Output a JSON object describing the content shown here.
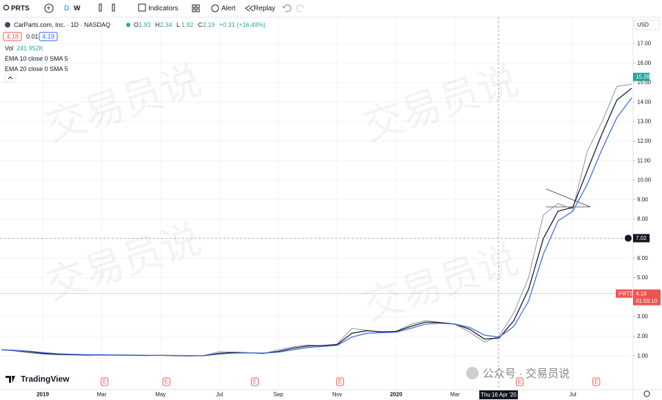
{
  "toolbar": {
    "symbol": "PRTS",
    "intervals": [
      "D",
      "W"
    ],
    "indicators": "Indicators",
    "alert": "Alert",
    "replay": "Replay"
  },
  "legend": {
    "title": "CarParts.com, Inc. · 1D · NASDAQ",
    "ohlc": [
      {
        "label": "O",
        "value": "1.93"
      },
      {
        "label": "H",
        "value": "2.34"
      },
      {
        "label": "L",
        "value": "1.92"
      },
      {
        "label": "C",
        "value": "2.19"
      }
    ],
    "change": "+0.31 (+16.49%)",
    "bid": "4.18",
    "spread": "0.01",
    "ask": "4.19",
    "volume_label": "Vol",
    "volume": "241.952K",
    "indicators": [
      "EMA 10 close 0 SMA 5",
      "EMA 20 close 0 SMA 5"
    ]
  },
  "watermark": "交易员说",
  "brand": "TradingView",
  "footer_note": "公众号 · 交易员说",
  "chart_data": {
    "type": "line",
    "currency": "USD",
    "x": [
      -1.4,
      -1,
      -0.5,
      0,
      0.5,
      1,
      1.5,
      2,
      2.5,
      3,
      3.5,
      4,
      4.5,
      5,
      5.5,
      6,
      6.5,
      7,
      7.5,
      8,
      8.5,
      9,
      9.5,
      10,
      10.5,
      11,
      11.5,
      12,
      12.5,
      13,
      13.5,
      14,
      14.5,
      15,
      15.5,
      16,
      16.5,
      17,
      17.5,
      18,
      18.5,
      19,
      19.5,
      20
    ],
    "series": [
      {
        "name": "PRTS",
        "color": "#8a8f99",
        "values": [
          1.3,
          1.25,
          1.15,
          1.08,
          1.05,
          1.05,
          1.02,
          1.05,
          1.02,
          1.02,
          1.0,
          1.02,
          1.0,
          0.98,
          1.02,
          1.2,
          1.18,
          1.15,
          1.1,
          1.3,
          1.45,
          1.55,
          1.5,
          1.6,
          2.4,
          2.3,
          2.2,
          2.25,
          2.6,
          2.8,
          2.7,
          2.6,
          2.2,
          1.7,
          2.0,
          3.2,
          5.0,
          8.2,
          8.8,
          8.5,
          11.5,
          13.0,
          14.8,
          14.9
        ]
      },
      {
        "name": "EMA 10",
        "color": "#131722",
        "values": [
          1.3,
          1.27,
          1.2,
          1.12,
          1.07,
          1.05,
          1.03,
          1.04,
          1.03,
          1.02,
          1.01,
          1.01,
          1.0,
          0.99,
          1.0,
          1.12,
          1.16,
          1.15,
          1.12,
          1.22,
          1.38,
          1.5,
          1.52,
          1.57,
          2.15,
          2.28,
          2.22,
          2.24,
          2.5,
          2.72,
          2.7,
          2.62,
          2.35,
          1.85,
          1.9,
          2.8,
          4.4,
          7.0,
          8.4,
          8.6,
          10.5,
          12.4,
          14.1,
          14.7
        ]
      },
      {
        "name": "EMA 20",
        "color": "#3d6be0",
        "values": [
          1.3,
          1.28,
          1.23,
          1.16,
          1.1,
          1.07,
          1.05,
          1.05,
          1.04,
          1.03,
          1.02,
          1.01,
          1.01,
          1.0,
          1.0,
          1.08,
          1.13,
          1.14,
          1.13,
          1.18,
          1.3,
          1.42,
          1.47,
          1.53,
          1.95,
          2.15,
          2.18,
          2.2,
          2.4,
          2.62,
          2.66,
          2.62,
          2.45,
          2.05,
          1.95,
          2.5,
          3.8,
          6.2,
          7.9,
          8.4,
          9.8,
          11.6,
          13.2,
          14.2
        ]
      }
    ],
    "xlim": [
      -1.452,
      20.047
    ],
    "ylim": [
      -0.742,
      18.233
    ],
    "xticks": [
      {
        "value": 0,
        "label": "2019"
      },
      {
        "value": 2,
        "label": "Mar"
      },
      {
        "value": 4,
        "label": "May"
      },
      {
        "value": 6,
        "label": "Jul"
      },
      {
        "value": 8,
        "label": "Sep"
      },
      {
        "value": 10,
        "label": "Nov"
      },
      {
        "value": 12,
        "label": "2020"
      },
      {
        "value": 14,
        "label": "Mar"
      },
      {
        "value": 18,
        "label": "Jul"
      }
    ],
    "yticks": [
      {
        "value": 1,
        "label": "1.00"
      },
      {
        "value": 2,
        "label": "2.00"
      },
      {
        "value": 3,
        "label": "3.00"
      },
      {
        "value": 5,
        "label": "5.00"
      },
      {
        "value": 6,
        "label": "6.00"
      },
      {
        "value": 8,
        "label": "8.00"
      },
      {
        "value": 9,
        "label": "9.00"
      },
      {
        "value": 10,
        "label": "10.00"
      },
      {
        "value": 11,
        "label": "11.00"
      },
      {
        "value": 12,
        "label": "12.00"
      },
      {
        "value": 13,
        "label": "13.00"
      },
      {
        "value": 14,
        "label": "14.00"
      },
      {
        "value": 15,
        "label": "15.00"
      },
      {
        "value": 16,
        "label": "16.00"
      },
      {
        "value": 17,
        "label": "17.00"
      }
    ],
    "grid": true,
    "last_price": {
      "value": 15.28,
      "label": "15.28",
      "color": "#26a69a"
    },
    "premarket": {
      "name": "PRTS",
      "value": 4.18,
      "label": "4.18",
      "time": "01:59:10",
      "color": "#ef5350"
    },
    "crosshair": {
      "x": 15.48,
      "x_label": "Thu 16 Apr '20",
      "y": 7.02,
      "y_label": "7.02"
    },
    "events": {
      "label": "E",
      "x": [
        2.1,
        4.2,
        7.2,
        10.1,
        16.2,
        18.8
      ]
    }
  }
}
